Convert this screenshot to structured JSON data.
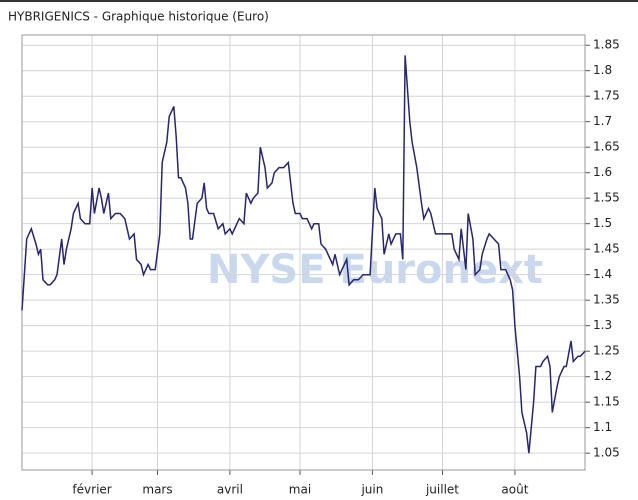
{
  "chart_data": {
    "type": "line",
    "title": "HYBRIGENICS - Graphique historique  (Euro)",
    "watermark": "NYSE Euronext",
    "x": [
      2,
      4,
      6,
      8,
      9,
      10,
      11,
      13,
      14,
      16,
      17,
      19,
      20,
      21,
      23,
      24,
      26,
      27,
      29,
      31,
      32,
      33,
      35,
      36,
      37,
      39,
      40,
      42,
      44,
      46,
      48,
      50,
      51,
      53,
      54,
      56,
      57,
      59,
      61,
      62,
      64,
      65,
      67,
      68,
      69,
      70,
      72,
      73,
      74,
      75,
      77,
      79,
      80,
      81,
      82,
      84,
      86,
      88,
      89,
      91,
      92,
      94,
      95,
      97,
      98,
      100,
      101,
      103,
      104,
      106,
      107,
      109,
      110,
      112,
      114,
      116,
      118,
      119,
      121,
      122,
      124,
      126,
      127,
      129,
      130,
      132,
      133,
      135,
      136,
      138,
      139,
      141,
      142,
      144,
      146,
      148,
      149,
      151,
      153,
      154,
      156,
      157,
      159,
      160,
      162,
      164,
      165,
      166,
      168,
      169,
      171,
      173,
      174,
      176,
      177,
      179,
      180,
      182,
      184,
      186,
      187,
      189,
      190,
      192,
      193,
      195,
      196,
      198,
      199,
      201,
      202,
      204,
      206,
      207,
      209,
      211,
      212,
      213,
      215,
      216,
      218,
      219,
      221,
      222,
      224,
      225,
      227,
      228,
      229,
      231,
      232,
      234,
      235,
      237,
      238,
      240,
      241,
      243
    ],
    "series": [
      {
        "name": "HYBRIGENICS",
        "color": "#26266e",
        "values": [
          1.33,
          1.47,
          1.49,
          1.46,
          1.44,
          1.45,
          1.39,
          1.38,
          1.38,
          1.39,
          1.4,
          1.47,
          1.42,
          1.45,
          1.49,
          1.52,
          1.54,
          1.51,
          1.5,
          1.5,
          1.57,
          1.52,
          1.57,
          1.55,
          1.52,
          1.56,
          1.51,
          1.52,
          1.52,
          1.51,
          1.47,
          1.48,
          1.43,
          1.42,
          1.4,
          1.42,
          1.41,
          1.41,
          1.48,
          1.62,
          1.66,
          1.71,
          1.73,
          1.67,
          1.59,
          1.59,
          1.57,
          1.54,
          1.47,
          1.47,
          1.54,
          1.55,
          1.58,
          1.53,
          1.52,
          1.52,
          1.49,
          1.5,
          1.48,
          1.49,
          1.48,
          1.5,
          1.51,
          1.5,
          1.56,
          1.54,
          1.55,
          1.56,
          1.65,
          1.61,
          1.57,
          1.58,
          1.6,
          1.61,
          1.61,
          1.62,
          1.54,
          1.52,
          1.52,
          1.51,
          1.51,
          1.49,
          1.5,
          1.5,
          1.46,
          1.45,
          1.44,
          1.42,
          1.44,
          1.4,
          1.41,
          1.43,
          1.38,
          1.39,
          1.39,
          1.4,
          1.4,
          1.4,
          1.57,
          1.53,
          1.51,
          1.44,
          1.48,
          1.46,
          1.48,
          1.48,
          1.43,
          1.83,
          1.7,
          1.66,
          1.61,
          1.54,
          1.51,
          1.53,
          1.52,
          1.48,
          1.48,
          1.48,
          1.48,
          1.48,
          1.45,
          1.43,
          1.49,
          1.41,
          1.52,
          1.47,
          1.4,
          1.41,
          1.44,
          1.47,
          1.48,
          1.47,
          1.46,
          1.41,
          1.41,
          1.39,
          1.37,
          1.3,
          1.2,
          1.13,
          1.09,
          1.05,
          1.15,
          1.22,
          1.22,
          1.23,
          1.24,
          1.22,
          1.13,
          1.18,
          1.2,
          1.22,
          1.22,
          1.27,
          1.23,
          1.24,
          1.24,
          1.25
        ]
      }
    ],
    "xlim": [
      2,
      243
    ],
    "xticks": [
      {
        "value": 32,
        "label": "février"
      },
      {
        "value": 60,
        "label": "mars"
      },
      {
        "value": 91,
        "label": "avril"
      },
      {
        "value": 121,
        "label": "mai"
      },
      {
        "value": 152,
        "label": "juin"
      },
      {
        "value": 182,
        "label": "juillet"
      },
      {
        "value": 213,
        "label": "août"
      }
    ],
    "ylim": [
      1.017,
      1.87
    ],
    "yticks": [
      1.05,
      1.1,
      1.15,
      1.2,
      1.25,
      1.3,
      1.35,
      1.4,
      1.45,
      1.5,
      1.55,
      1.6,
      1.65,
      1.7,
      1.75,
      1.8,
      1.85
    ],
    "grid": true
  }
}
